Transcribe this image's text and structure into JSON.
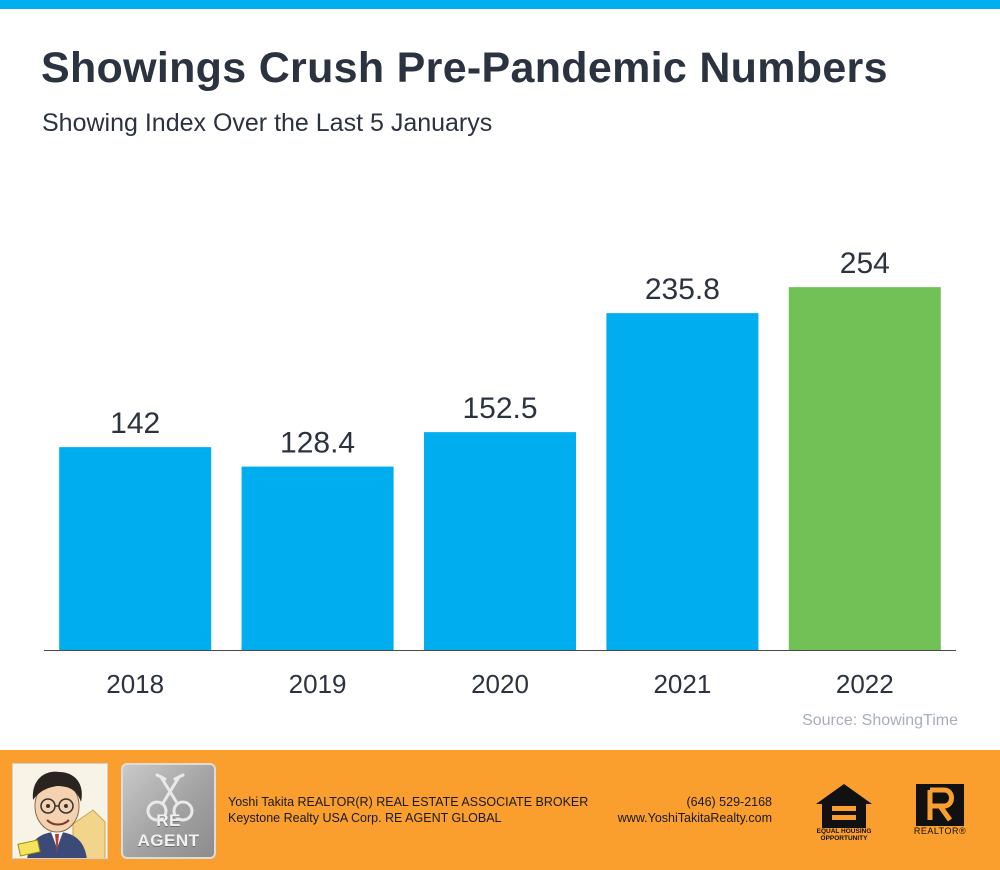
{
  "colors": {
    "accent_bar": "#00adef",
    "highlight_bar": "#72c156",
    "footer_bg": "#fa9e2e",
    "text": "#2b3340",
    "source_text": "#a7aeb8"
  },
  "header": {
    "title": "Showings Crush Pre-Pandemic Numbers",
    "subtitle": "Showing Index Over the Last 5 Januarys"
  },
  "chart_data": {
    "type": "bar",
    "categories": [
      "2018",
      "2019",
      "2020",
      "2021",
      "2022"
    ],
    "values": [
      142,
      128.4,
      152.5,
      235.8,
      254
    ],
    "data_labels": [
      "142",
      "128.4",
      "152.5",
      "235.8",
      "254"
    ],
    "highlight_index": 4,
    "ylim": [
      0,
      280
    ],
    "grid": false,
    "legend": "none",
    "title": "Showings Crush Pre-Pandemic Numbers",
    "subtitle": "Showing Index Over the Last 5 Januarys",
    "xlabel": "",
    "ylabel": ""
  },
  "source": "Source: ShowingTime",
  "footer": {
    "agent_line": "Yoshi Takita REALTOR(R) REAL ESTATE ASSOCIATE BROKER",
    "company_line": "Keystone Realty USA Corp.  RE AGENT GLOBAL",
    "phone": "(646) 529-2168",
    "website": "www.YoshiTakitaRealty.com",
    "logo_text": "RE AGENT",
    "eho_label_1": "EQUAL HOUSING",
    "eho_label_2": "OPPORTUNITY",
    "realtor_label": "REALTOR®",
    "icons": [
      "agent-caricature",
      "re-agent-logo",
      "equal-housing-icon",
      "realtor-icon"
    ]
  }
}
